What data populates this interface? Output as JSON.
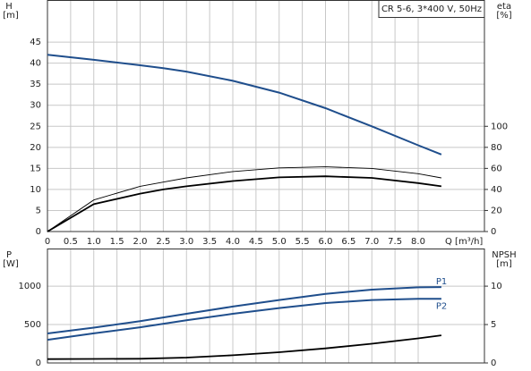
{
  "chart_data": [
    {
      "type": "line",
      "title": "CR 5-6, 3*400 V, 50Hz",
      "y_label": "H",
      "y_unit": "[m]",
      "y2_label": "eta",
      "y2_unit": "[%]",
      "x_label": "Q [m³/h]",
      "x": [
        0,
        1,
        2,
        2.5,
        3,
        4,
        5,
        6,
        7,
        8,
        8.5
      ],
      "xlim": [
        0,
        9.43
      ],
      "xticks": [
        0,
        0.5,
        {
          "value": 1,
          "label": "1.0"
        },
        1.5,
        {
          "value": 2,
          "label": "2.0"
        },
        2.5,
        {
          "value": 3,
          "label": "3.0"
        },
        3.5,
        {
          "value": 4,
          "label": "4.0"
        },
        4.5,
        {
          "value": 5,
          "label": "5.0"
        },
        5.5,
        {
          "value": 6,
          "label": "6.0"
        },
        6.5,
        {
          "value": 7,
          "label": "7.0"
        },
        7.5,
        {
          "value": 8,
          "label": "8.0"
        }
      ],
      "ylim": [
        0,
        55
      ],
      "yticks": [
        0,
        5,
        10,
        15,
        20,
        25,
        30,
        35,
        40,
        45
      ],
      "y2lim": [
        0,
        220
      ],
      "y2ticks": [
        0,
        20,
        40,
        60,
        80,
        100
      ],
      "grid": true,
      "series": [
        {
          "color": "#1f4e8c",
          "values": [
            42,
            40.8,
            39.5,
            38.8,
            38,
            35.8,
            33,
            29.3,
            25,
            20.5,
            18.3
          ]
        },
        {
          "color": "#000000",
          "axis": "y2",
          "values": [
            0,
            30,
            43,
            47,
            51,
            57,
            60.5,
            61.5,
            60,
            55,
            51
          ]
        },
        {
          "color": "#000000",
          "axis": "y2",
          "values": [
            0,
            26,
            36,
            40,
            43,
            48,
            51.5,
            52.5,
            51,
            46,
            43
          ]
        }
      ]
    },
    {
      "type": "line",
      "y_label": "P",
      "y_unit": "[W]",
      "y2_label": "NPSH",
      "y2_unit": "[m]",
      "x": [
        0,
        1,
        2,
        3,
        4,
        5,
        6,
        7,
        8,
        8.5
      ],
      "xlim": [
        0,
        9.43
      ],
      "ylim": [
        0,
        1490
      ],
      "yticks": [
        0,
        500,
        1000
      ],
      "y2lim": [
        0,
        14.9
      ],
      "y2ticks": [
        0,
        5,
        10
      ],
      "grid": true,
      "series": [
        {
          "name": "P1",
          "color": "#1f4e8c",
          "values": [
            384,
            460,
            545,
            640,
            735,
            820,
            900,
            955,
            985,
            988
          ]
        },
        {
          "name": "P2",
          "color": "#1f4e8c",
          "values": [
            302,
            385,
            465,
            555,
            640,
            715,
            780,
            820,
            835,
            835
          ]
        },
        {
          "color": "#000000",
          "axis": "y2",
          "values": [
            0.5,
            0.52,
            0.55,
            0.7,
            1.0,
            1.4,
            1.9,
            2.5,
            3.2,
            3.6
          ]
        }
      ]
    }
  ]
}
